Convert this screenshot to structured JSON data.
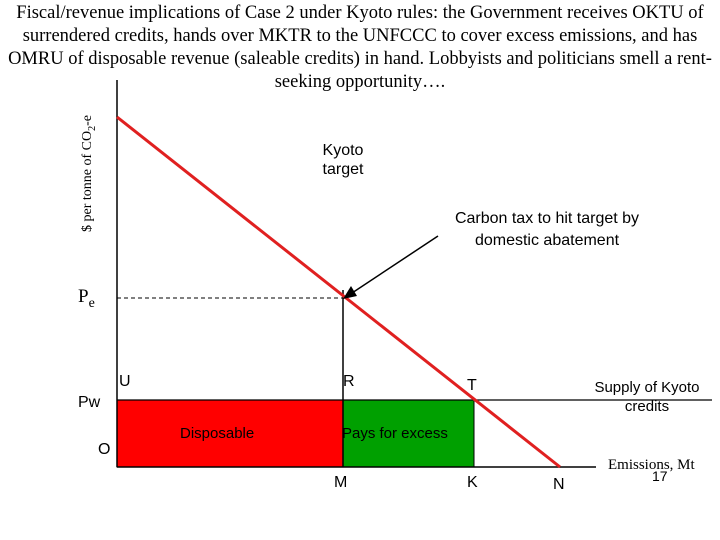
{
  "title": "Fiscal/revenue implications of Case 2 under Kyoto rules: the Government receives OKTU of surrendered credits, hands over MKTR to the UNFCCC to cover excess emissions, and has OMRU of disposable revenue (saleable credits) in hand.  Lobbyists and politicians smell a rent-seeking opportunity….",
  "axis": {
    "y_label_prefix": "$ per tonne of CO",
    "y_label_sub": "2",
    "y_label_suffix": "-e",
    "x_label": "Emissions, Mt"
  },
  "labels": {
    "kyoto_target": "Kyoto\ntarget",
    "carbon_tax": "Carbon tax to hit target by\ndomestic abatement",
    "pe_main": "P",
    "pe_sub": "e",
    "pw": "Pw",
    "u": "U",
    "r": "R",
    "t": "T",
    "o": "O",
    "m": "M",
    "k": "K",
    "n": "N",
    "supply": "Supply of Kyoto\ncredits",
    "disposable": "Disposable",
    "pays_for_excess": "Pays for excess"
  },
  "colors": {
    "demand_line": "#e02020",
    "disposable_fill": "#ff0000",
    "excess_fill": "#00a000",
    "axis": "#000000"
  },
  "page_number": "17"
}
